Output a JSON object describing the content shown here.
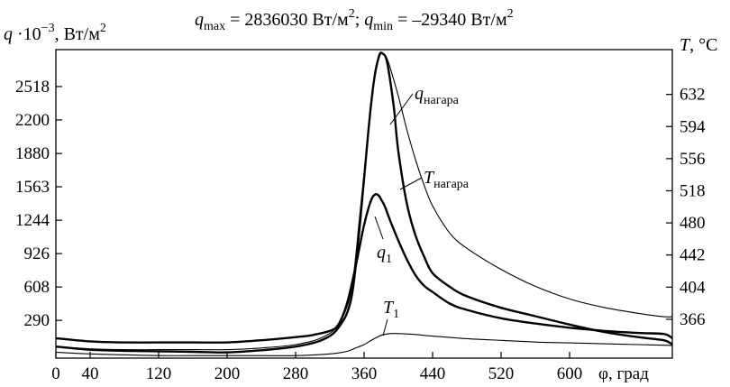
{
  "chart_data": {
    "type": "line",
    "title_parts": {
      "qmax_sym": "q",
      "qmax_sub": "max",
      "qmax_val": " = 2836030 Вт/м",
      "sq1": "2",
      "sep": "; ",
      "qmin_sym": "q",
      "qmin_sub": "min",
      "qmin_val": " = –29340 Вт/м",
      "sq2": "2"
    },
    "ylabel_left": {
      "sym": "q",
      "text": " ·10",
      "exp": "−3",
      "unit": ", Вт/м",
      "sq": "2"
    },
    "ylabel_right": {
      "sym": "T",
      "unit": ", °C"
    },
    "xlabel": "φ, град",
    "xlim": [
      0,
      720
    ],
    "ylim_left": [
      -70,
      2870
    ],
    "ylim_right": [
      320,
      685
    ],
    "x_ticks": [
      "0",
      "40",
      "120",
      "200",
      "280",
      "360",
      "440",
      "520",
      "600"
    ],
    "x_tick_values": [
      0,
      40,
      120,
      200,
      280,
      360,
      440,
      520,
      600
    ],
    "y_left_ticks": [
      "290",
      "608",
      "926",
      "1244",
      "1563",
      "1880",
      "2200",
      "2518"
    ],
    "y_left_tick_values": [
      290,
      608,
      926,
      1244,
      1563,
      1880,
      2200,
      2518
    ],
    "y_right_ticks": [
      "366",
      "404",
      "442",
      "480",
      "518",
      "556",
      "594",
      "632"
    ],
    "y_right_tick_values": [
      366,
      404,
      442,
      480,
      518,
      556,
      594,
      632
    ],
    "annotations": {
      "q_nagara": {
        "sym": "q",
        "sub": "нагара"
      },
      "T_nagara": {
        "sym": "T",
        "sub": "нагара"
      },
      "q1": {
        "sym": "q",
        "sub": "1"
      },
      "T1": {
        "sym": "T",
        "sub": "1"
      }
    },
    "series": [
      {
        "name": "q_нагара",
        "axis": "left",
        "style": "thick",
        "x": [
          0,
          40,
          80,
          120,
          160,
          200,
          240,
          280,
          310,
          330,
          345,
          355,
          365,
          372,
          378,
          382,
          386,
          390,
          395,
          400,
          410,
          420,
          430,
          440,
          460,
          480,
          520,
          560,
          600,
          640,
          680,
          710,
          720
        ],
        "y": [
          40,
          10,
          0,
          -5,
          -10,
          -15,
          5,
          40,
          100,
          220,
          500,
          1200,
          2100,
          2600,
          2820,
          2830,
          2780,
          2600,
          2300,
          1900,
          1400,
          1100,
          900,
          740,
          610,
          520,
          410,
          330,
          250,
          180,
          130,
          100,
          60
        ]
      },
      {
        "name": "T_нагара",
        "axis": "right",
        "style": "thin",
        "x": [
          0,
          40,
          80,
          120,
          160,
          200,
          240,
          280,
          310,
          330,
          345,
          355,
          365,
          372,
          378,
          382,
          386,
          390,
          400,
          410,
          420,
          430,
          440,
          460,
          480,
          520,
          560,
          600,
          640,
          680,
          710,
          720
        ],
        "y": [
          334,
          331,
          330,
          330,
          330,
          330,
          332,
          336,
          344,
          360,
          400,
          490,
          590,
          650,
          677,
          680,
          676,
          665,
          630,
          590,
          555,
          525,
          500,
          468,
          450,
          425,
          405,
          390,
          380,
          373,
          369,
          369
        ]
      },
      {
        "name": "q_1",
        "axis": "left",
        "style": "thick",
        "x": [
          0,
          40,
          80,
          120,
          160,
          200,
          240,
          280,
          300,
          320,
          330,
          340,
          350,
          360,
          368,
          373,
          377,
          380,
          384,
          390,
          400,
          410,
          420,
          430,
          440,
          460,
          480,
          520,
          560,
          600,
          640,
          680,
          710,
          720
        ],
        "y": [
          120,
          90,
          80,
          80,
          80,
          80,
          100,
          130,
          150,
          190,
          250,
          450,
          800,
          1200,
          1430,
          1490,
          1480,
          1440,
          1380,
          1250,
          1050,
          870,
          720,
          620,
          560,
          450,
          390,
          310,
          260,
          220,
          190,
          170,
          160,
          120
        ]
      },
      {
        "name": "T_1",
        "axis": "right",
        "style": "thin",
        "x": [
          0,
          40,
          80,
          120,
          160,
          200,
          240,
          280,
          320,
          340,
          350,
          360,
          370,
          380,
          390,
          400,
          420,
          440,
          480,
          520,
          560,
          600,
          640,
          680,
          720
        ],
        "y": [
          327,
          325,
          324,
          323,
          323,
          323,
          323,
          323,
          325,
          328,
          332,
          336,
          342,
          347,
          349,
          349,
          348,
          346,
          343,
          341,
          339,
          338,
          337,
          336,
          335
        ]
      }
    ]
  }
}
